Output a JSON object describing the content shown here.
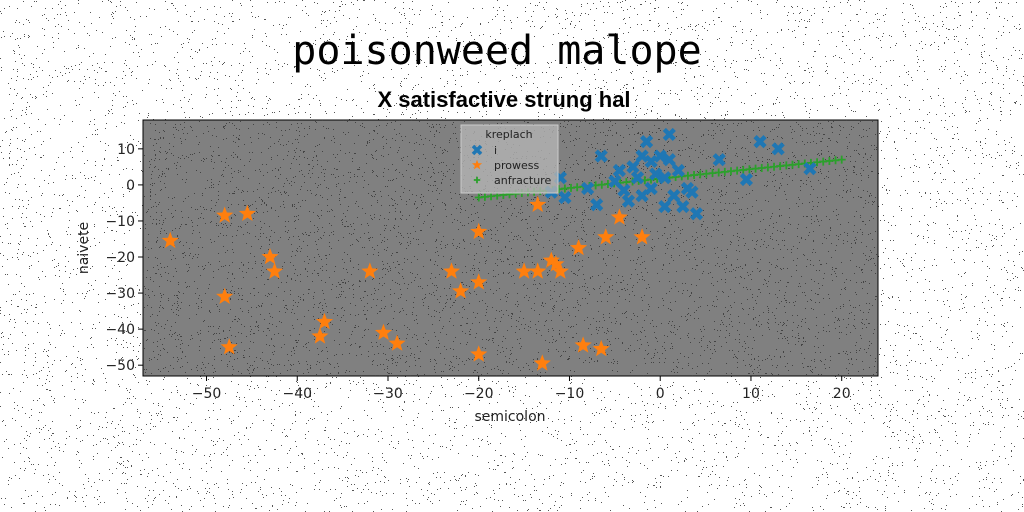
{
  "header": {
    "suptitle": "poisonweed malope"
  },
  "chart_data": {
    "type": "scatter",
    "title": "X satisfactive strung hal",
    "xlabel": "semicolon",
    "ylabel": "naivete",
    "xlim": [
      -57,
      24
    ],
    "ylim": [
      -53,
      18
    ],
    "xticks": [
      -50,
      -40,
      -30,
      -20,
      -10,
      0,
      10,
      20
    ],
    "yticks": [
      10,
      0,
      -10,
      -20,
      -30,
      -40,
      -50
    ],
    "grid": false,
    "background_color": "#808080",
    "legend": {
      "title": "kreplach",
      "placement": "top-center"
    },
    "series": [
      {
        "name": "i",
        "color": "#1f77b4",
        "marker": "x-thick",
        "points": [
          [
            -12,
            -2
          ],
          [
            -11,
            2
          ],
          [
            -10.5,
            -3.5
          ],
          [
            -8,
            -1
          ],
          [
            -7,
            -5.5
          ],
          [
            -6.5,
            8
          ],
          [
            -5,
            1
          ],
          [
            -4.5,
            4
          ],
          [
            -4,
            -1.5
          ],
          [
            -3.5,
            -4.5
          ],
          [
            -3,
            5
          ],
          [
            -2.5,
            2
          ],
          [
            -2,
            8
          ],
          [
            -2,
            -3
          ],
          [
            -1.5,
            12
          ],
          [
            -1,
            6.5
          ],
          [
            -1,
            -1
          ],
          [
            -0.5,
            3
          ],
          [
            0,
            8
          ],
          [
            0.5,
            2
          ],
          [
            0.5,
            -6
          ],
          [
            1,
            14
          ],
          [
            1,
            7
          ],
          [
            1.5,
            -3
          ],
          [
            2,
            4
          ],
          [
            2.5,
            -6
          ],
          [
            3,
            -1
          ],
          [
            3.5,
            -2
          ],
          [
            4,
            -8
          ],
          [
            6.5,
            7
          ],
          [
            9.5,
            1.5
          ],
          [
            11,
            12
          ],
          [
            13,
            10
          ],
          [
            16.5,
            4.5
          ]
        ]
      },
      {
        "name": "prowess",
        "color": "#ff7f0e",
        "marker": "star",
        "points": [
          [
            -54,
            -15.5
          ],
          [
            -48,
            -8.5
          ],
          [
            -48,
            -31
          ],
          [
            -47.5,
            -45
          ],
          [
            -45.5,
            -8
          ],
          [
            -43,
            -20
          ],
          [
            -42.5,
            -24
          ],
          [
            -37.5,
            -42
          ],
          [
            -37,
            -38
          ],
          [
            -32,
            -24
          ],
          [
            -30.5,
            -41
          ],
          [
            -29,
            -44
          ],
          [
            -23,
            -24
          ],
          [
            -22,
            -29.5
          ],
          [
            -20,
            -13
          ],
          [
            -20,
            -27
          ],
          [
            -20,
            -47
          ],
          [
            -15,
            -24
          ],
          [
            -13.5,
            -24
          ],
          [
            -13.5,
            -5.5
          ],
          [
            -13,
            -49.5
          ],
          [
            -12,
            -21
          ],
          [
            -11.5,
            -22
          ],
          [
            -11,
            -24
          ],
          [
            -9,
            -17.5
          ],
          [
            -8.5,
            -44.5
          ],
          [
            -6.5,
            -45.5
          ],
          [
            -6,
            -14.5
          ],
          [
            -4.5,
            -9
          ],
          [
            -2,
            -14.5
          ]
        ]
      },
      {
        "name": "anfracture",
        "color": "#2ca02c",
        "marker": "plus",
        "line": {
          "from": [
            -20,
            -3.5
          ],
          "to": [
            20,
            7
          ],
          "count": 60
        }
      }
    ]
  }
}
